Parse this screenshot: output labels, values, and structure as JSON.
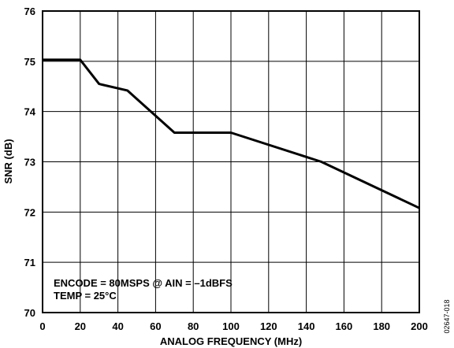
{
  "chart_data": {
    "type": "line",
    "title": "",
    "xlabel": "ANALOG FREQUENCY (MHz)",
    "ylabel": "SNR (dB)",
    "xlim": [
      0,
      200
    ],
    "ylim": [
      70,
      76
    ],
    "xticks": [
      0,
      20,
      40,
      60,
      80,
      100,
      120,
      140,
      160,
      180,
      200
    ],
    "yticks": [
      70,
      71,
      72,
      73,
      74,
      75,
      76
    ],
    "grid": true,
    "series": [
      {
        "x": [
          0,
          20,
          30,
          45,
          70,
          100,
          148,
          200
        ],
        "y": [
          75.03,
          75.03,
          74.55,
          74.42,
          73.58,
          73.58,
          73.0,
          72.08
        ]
      }
    ],
    "annotations": [
      "ENCODE = 80MSPS @ AIN = –1dBFS",
      "TEMP = 25°C"
    ],
    "figure_id": "02647-018"
  }
}
